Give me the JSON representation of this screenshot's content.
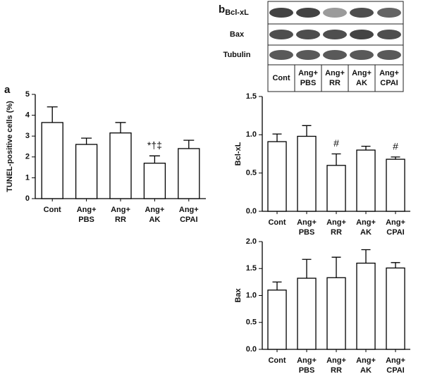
{
  "panel_labels": [
    "a",
    "b"
  ],
  "blot": {
    "rows": [
      "Bcl-xL",
      "Bax",
      "Tubulin"
    ],
    "lanes": [
      [
        "Cont"
      ],
      [
        "Ang+",
        "PBS"
      ],
      [
        "Ang+",
        "RR"
      ],
      [
        "Ang+",
        "AK"
      ],
      [
        "Ang+",
        "CPAI"
      ]
    ]
  },
  "chart_data": [
    {
      "type": "bar",
      "ylabel": "TUNEL-positive cells (%)",
      "categories": [
        [
          "Cont"
        ],
        [
          "Ang+",
          "PBS"
        ],
        [
          "Ang+",
          "RR"
        ],
        [
          "Ang+",
          "AK"
        ],
        [
          "Ang+",
          "CPAI"
        ]
      ],
      "values": [
        3.65,
        2.6,
        3.15,
        1.7,
        2.4
      ],
      "errors": [
        0.75,
        0.3,
        0.5,
        0.35,
        0.4
      ],
      "color": "#ffffff",
      "ylim": [
        0,
        5
      ],
      "yticks": [
        0,
        1,
        2,
        3,
        4,
        5
      ],
      "annotations": [
        "*†‡"
      ]
    },
    {
      "type": "bar",
      "ylabel": "Bcl-xL",
      "categories": [
        [
          "Cont"
        ],
        [
          "Ang+",
          "PBS"
        ],
        [
          "Ang+",
          "RR"
        ],
        [
          "Ang+",
          "AK"
        ],
        [
          "Ang+",
          "CPAI"
        ]
      ],
      "values": [
        0.91,
        0.98,
        0.6,
        0.8,
        0.68
      ],
      "errors": [
        0.1,
        0.14,
        0.15,
        0.05,
        0.03
      ],
      "color": "#ffffff",
      "ylim": [
        0,
        1.5
      ],
      "yticks": [
        {
          "value": 0,
          "label": "0.0"
        },
        {
          "value": 0.5,
          "label": "0.5"
        },
        {
          "value": 1,
          "label": "1.0"
        },
        {
          "value": 1.5,
          "label": "1.5"
        }
      ],
      "annotations": [
        "#",
        "#"
      ]
    },
    {
      "type": "bar",
      "ylabel": "Bax",
      "categories": [
        [
          "Cont"
        ],
        [
          "Ang+",
          "PBS"
        ],
        [
          "Ang+",
          "RR"
        ],
        [
          "Ang+",
          "AK"
        ],
        [
          "Ang+",
          "CPAI"
        ]
      ],
      "values": [
        1.1,
        1.32,
        1.33,
        1.6,
        1.51
      ],
      "errors": [
        0.15,
        0.35,
        0.38,
        0.25,
        0.1
      ],
      "color": "#ffffff",
      "ylim": [
        0,
        2
      ],
      "yticks": [
        {
          "value": 0,
          "label": "0.0"
        },
        {
          "value": 0.5,
          "label": "0.5"
        },
        {
          "value": 1,
          "label": "1.0"
        },
        {
          "value": 1.5,
          "label": "1.5"
        },
        {
          "value": 2,
          "label": "2.0"
        }
      ],
      "annotations": []
    }
  ]
}
